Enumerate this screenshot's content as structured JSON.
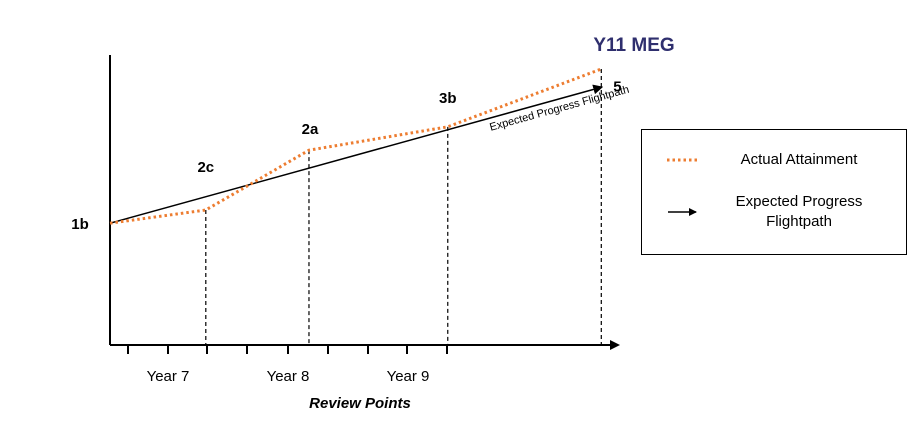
{
  "chart_data": {
    "type": "line",
    "title": "Y11 MEG",
    "xlabel": "Review Points",
    "ylabel": "",
    "x_ticks": [
      "Year 7",
      "Year 8",
      "Year 9"
    ],
    "review_points": [
      {
        "index": 0,
        "label": "1b"
      },
      {
        "index": 1,
        "label": "2c"
      },
      {
        "index": 2,
        "label": "2a"
      },
      {
        "index": 3,
        "label": "3b"
      },
      {
        "index": 4,
        "label": "5"
      }
    ],
    "x_range": [
      0,
      4.25
    ],
    "y_range": [
      -1.2,
      2.2
    ],
    "series": [
      {
        "name": "Actual Attainment",
        "style": "dotted",
        "color": "#ED7D31",
        "x": [
          0,
          0.78,
          1.62,
          2.75,
          4.0
        ],
        "y": [
          0,
          0.13,
          0.72,
          0.95,
          1.52
        ]
      },
      {
        "name": "Expected Progress Flightpath",
        "style": "arrow",
        "color": "#000000",
        "x": [
          0,
          4.0
        ],
        "y": [
          0,
          1.34
        ],
        "annotation": "Expected Progress Flightpath"
      }
    ],
    "legend_position": "right",
    "grid": false
  },
  "legend": {
    "actual_label": "Actual Attainment",
    "expected_label_line1": "Expected Progress",
    "expected_label_line2": "Flightpath"
  }
}
